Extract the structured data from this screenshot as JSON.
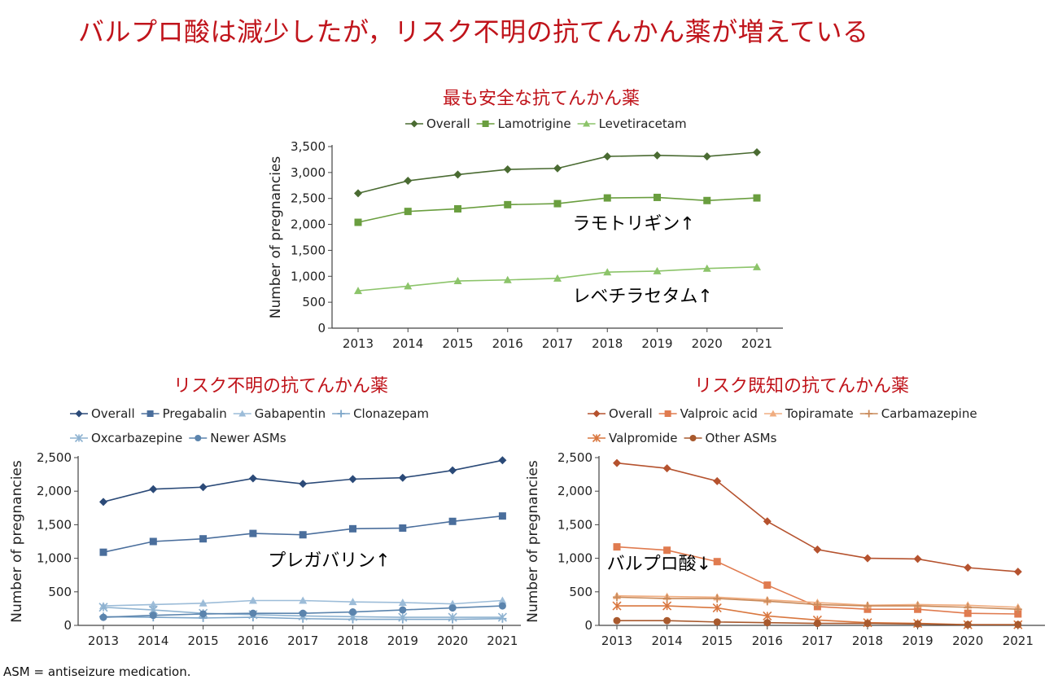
{
  "title": "バルプロ酸は減少したが，リスク不明の抗てんかん薬が増えている",
  "footnote": "ASM = antiseizure medication.",
  "colors": {
    "title_red": "#c0141b",
    "safe_overall": "#4a6b32",
    "safe_lamotrigine": "#6a9e3f",
    "safe_levetiracetam": "#8cc46a",
    "unknown_overall": "#2b4a78",
    "unknown_pregabalin": "#4a6e9c",
    "unknown_gabapentin": "#9cbcd8",
    "unknown_clonazepam": "#7ea6c9",
    "unknown_oxcarbazepine": "#8fb3d1",
    "unknown_newer": "#5b84ad",
    "known_overall": "#b5522e",
    "known_valproic": "#e07b4f",
    "known_topiramate": "#f0ad80",
    "known_carbamazepine": "#c98a5a",
    "known_valpromide": "#d9773f",
    "known_other": "#a8592d"
  },
  "chart_data": [
    {
      "id": "safest",
      "type": "line",
      "title": "最も安全な抗てんかん薬",
      "xlabel": "",
      "ylabel": "Number of pregnancies",
      "x": [
        "2013",
        "2014",
        "2015",
        "2016",
        "2017",
        "2018",
        "2019",
        "2020",
        "2021"
      ],
      "ylim": [
        0,
        3500
      ],
      "yticks": [
        0,
        500,
        1000,
        1500,
        2000,
        2500,
        3000,
        3500
      ],
      "ytick_labels": [
        "0",
        "500",
        "1,000",
        "1,500",
        "2,000",
        "2,500",
        "3,000",
        "3,500"
      ],
      "legend_position": "top",
      "series": [
        {
          "name": "Overall",
          "marker": "diamond",
          "color_key": "safe_overall",
          "values": [
            2600,
            2840,
            2960,
            3060,
            3080,
            3310,
            3330,
            3310,
            3390
          ]
        },
        {
          "name": "Lamotrigine",
          "marker": "square",
          "color_key": "safe_lamotrigine",
          "values": [
            2040,
            2250,
            2300,
            2380,
            2400,
            2510,
            2520,
            2460,
            2510
          ]
        },
        {
          "name": "Levetiracetam",
          "marker": "triangle",
          "color_key": "safe_levetiracetam",
          "values": [
            720,
            810,
            910,
            930,
            960,
            1080,
            1100,
            1150,
            1180
          ]
        }
      ],
      "annotations": [
        {
          "text": "ラモトリギン↑",
          "x": 4.3,
          "y": 1900
        },
        {
          "text": "レベチラセタム↑",
          "x": 4.3,
          "y": 500
        }
      ]
    },
    {
      "id": "unknown",
      "type": "line",
      "title": "リスク不明の抗てんかん薬",
      "xlabel": "",
      "ylabel": "Number of pregnancies",
      "x": [
        "2013",
        "2014",
        "2015",
        "2016",
        "2017",
        "2018",
        "2019",
        "2020",
        "2021"
      ],
      "ylim": [
        0,
        2500
      ],
      "yticks": [
        0,
        500,
        1000,
        1500,
        2000,
        2500
      ],
      "ytick_labels": [
        "0",
        "500",
        "1,000",
        "1,500",
        "2,000",
        "2,500"
      ],
      "legend_position": "top",
      "series": [
        {
          "name": "Overall",
          "marker": "diamond",
          "color_key": "unknown_overall",
          "values": [
            1840,
            2030,
            2060,
            2190,
            2110,
            2180,
            2200,
            2310,
            2460
          ]
        },
        {
          "name": "Pregabalin",
          "marker": "square",
          "color_key": "unknown_pregabalin",
          "values": [
            1090,
            1250,
            1290,
            1370,
            1350,
            1440,
            1450,
            1550,
            1630
          ]
        },
        {
          "name": "Gabapentin",
          "marker": "triangle",
          "color_key": "unknown_gabapentin",
          "values": [
            290,
            310,
            330,
            370,
            370,
            350,
            340,
            320,
            370
          ]
        },
        {
          "name": "Clonazepam",
          "marker": "plus",
          "color_key": "unknown_clonazepam",
          "values": [
            130,
            120,
            110,
            120,
            100,
            90,
            90,
            90,
            100
          ]
        },
        {
          "name": "Oxcarbazepine",
          "marker": "star",
          "color_key": "unknown_oxcarbazepine",
          "values": [
            270,
            230,
            180,
            160,
            140,
            130,
            120,
            120,
            120
          ]
        },
        {
          "name": "Newer ASMs",
          "marker": "circle",
          "color_key": "unknown_newer",
          "values": [
            120,
            150,
            170,
            180,
            180,
            200,
            230,
            260,
            290
          ]
        }
      ],
      "annotations": [
        {
          "text": "プレガバリン↑",
          "x": 3.3,
          "y": 880
        }
      ]
    },
    {
      "id": "known",
      "type": "line",
      "title": "リスク既知の抗てんかん薬",
      "xlabel": "",
      "ylabel": "Number of pregnancies",
      "x": [
        "2013",
        "2014",
        "2015",
        "2016",
        "2017",
        "2018",
        "2019",
        "2020",
        "2021"
      ],
      "ylim": [
        0,
        2500
      ],
      "yticks": [
        0,
        500,
        1000,
        1500,
        2000,
        2500
      ],
      "ytick_labels": [
        "0",
        "500",
        "1,000",
        "1,500",
        "2,000",
        "2,500"
      ],
      "legend_position": "top",
      "series": [
        {
          "name": "Overall",
          "marker": "diamond",
          "color_key": "known_overall",
          "values": [
            2420,
            2340,
            2150,
            1550,
            1130,
            1000,
            990,
            860,
            800
          ]
        },
        {
          "name": "Valproic acid",
          "marker": "square",
          "color_key": "known_valproic",
          "values": [
            1170,
            1120,
            950,
            600,
            280,
            240,
            240,
            180,
            170
          ]
        },
        {
          "name": "Topiramate",
          "marker": "triangle",
          "color_key": "known_topiramate",
          "values": [
            440,
            430,
            420,
            380,
            340,
            300,
            310,
            300,
            270
          ]
        },
        {
          "name": "Carbamazepine",
          "marker": "plus",
          "color_key": "known_carbamazepine",
          "values": [
            420,
            400,
            400,
            360,
            310,
            290,
            290,
            270,
            240
          ]
        },
        {
          "name": "Valpromide",
          "marker": "star",
          "color_key": "known_valpromide",
          "values": [
            290,
            290,
            260,
            140,
            80,
            40,
            30,
            10,
            10
          ]
        },
        {
          "name": "Other ASMs",
          "marker": "circle",
          "color_key": "known_other",
          "values": [
            70,
            70,
            50,
            40,
            30,
            30,
            20,
            10,
            10
          ]
        }
      ],
      "annotations": [
        {
          "text": "バルプロ酸↓",
          "x": -0.2,
          "y": 830
        }
      ]
    }
  ]
}
